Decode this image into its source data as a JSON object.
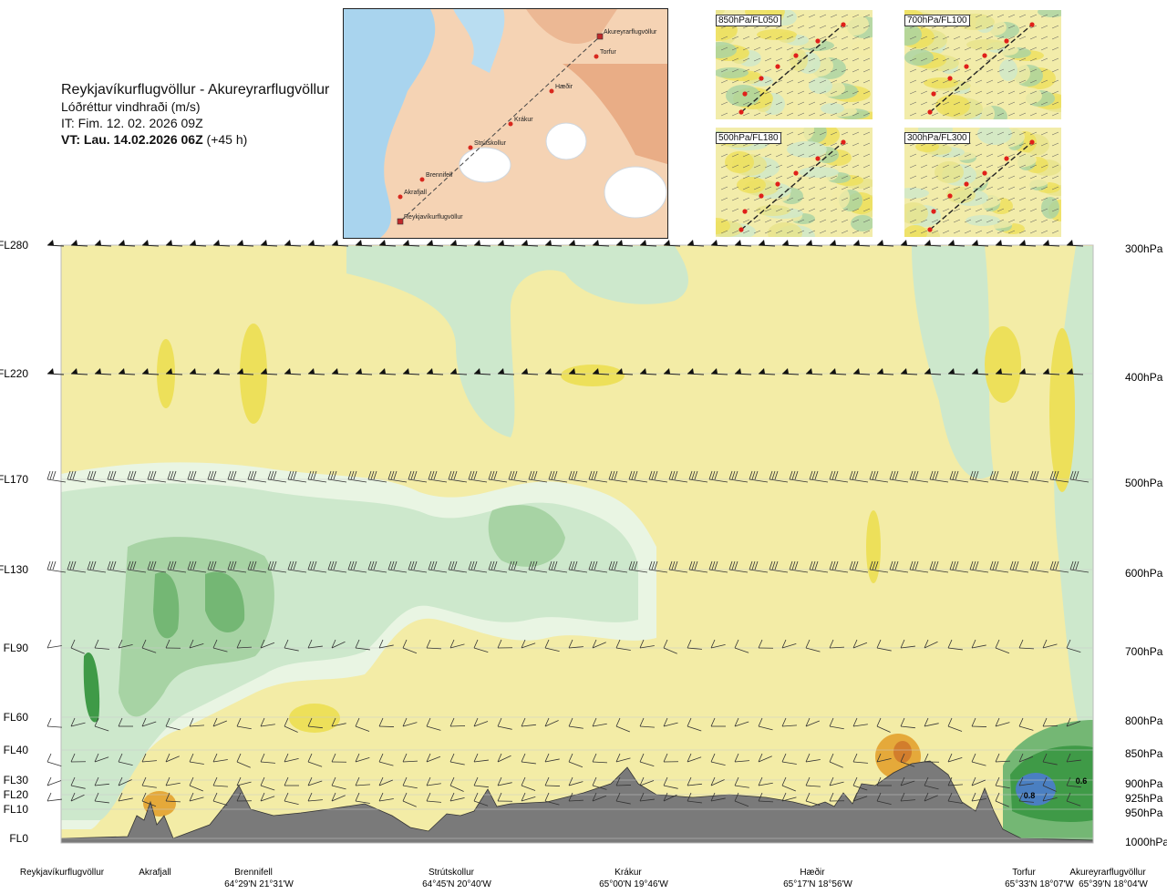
{
  "title": {
    "route": "Reykjavíkurflugvöllur - Akureyrarflugvöllur",
    "parameter": "Lóðréttur vindhraði (m/s)",
    "issue_time": "IT: Fim. 12. 02. 2026 09Z",
    "valid_time_bold": "VT: Lau. 14.02.2026 06Z",
    "valid_time_lead": "(+45 h)"
  },
  "map": {
    "places": [
      "Akureyrarflugvöllur",
      "Torfur",
      "Hæðir",
      "Krákur",
      "Strútskollur",
      "Brennifell",
      "Akrafjall",
      "Reykjavíkurflugvöllur"
    ]
  },
  "insets": [
    {
      "label": "850hPa/FL050"
    },
    {
      "label": "700hPa/FL100"
    },
    {
      "label": "500hPa/FL180"
    },
    {
      "label": "300hPa/FL300"
    }
  ],
  "chart_data": {
    "type": "heatmap",
    "title": "Lóðréttur vindhraði (m/s)",
    "levels": [
      {
        "fl": "FL280",
        "hpa": "300hPa"
      },
      {
        "fl": "FL220",
        "hpa": "400hPa"
      },
      {
        "fl": "FL170",
        "hpa": "500hPa"
      },
      {
        "fl": "FL130",
        "hpa": "600hPa"
      },
      {
        "fl": "FL90",
        "hpa": "700hPa"
      },
      {
        "fl": "FL60",
        "hpa": "800hPa"
      },
      {
        "fl": "FL40",
        "hpa": "850hPa"
      },
      {
        "fl": "FL30",
        "hpa": "900hPa"
      },
      {
        "fl": "FL20",
        "hpa": "925hPa"
      },
      {
        "fl": "FL10",
        "hpa": "950hPa"
      },
      {
        "fl": "FL0",
        "hpa": "1000hPa"
      }
    ],
    "waypoints": [
      {
        "name": "Reykjavíkurflugvöllur",
        "coord": ""
      },
      {
        "name": "Akrafjall",
        "coord": ""
      },
      {
        "name": "Brennifell",
        "coord": "64°29'N 21°31'W"
      },
      {
        "name": "Strútskollur",
        "coord": "64°45'N 20°40'W"
      },
      {
        "name": "Krákur",
        "coord": "65°00'N 19°46'W"
      },
      {
        "name": "Hæðir",
        "coord": "65°17'N 18°56'W"
      },
      {
        "name": "Torfur",
        "coord": "65°33'N 18°07'W"
      },
      {
        "name": "Akureyrarflugvöllur",
        "coord": "65°39'N 18°04'W"
      }
    ],
    "annotations": [
      "0.6",
      "0.8"
    ],
    "colors": {
      "yellow_light": "#f3eca6",
      "yellow": "#ede05a",
      "yellow_strong": "#e6cf2a",
      "orange": "#e5a93a",
      "orange_dark": "#d27d2c",
      "green_pale": "#e9f5e3",
      "green_light": "#cde8cc",
      "green": "#a7d3a4",
      "green_mid": "#74b774",
      "green_dark": "#3f9a47",
      "blue": "#4a7fc1",
      "terrain": "#7a7a7a"
    }
  }
}
